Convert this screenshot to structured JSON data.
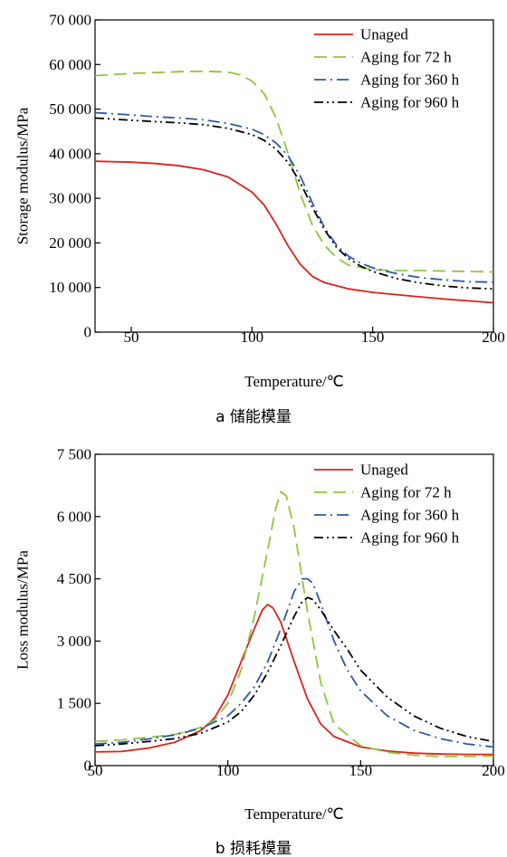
{
  "chart_data": [
    {
      "type": "line",
      "title": "",
      "caption": "a 储能模量",
      "xlabel": "Temperature/℃",
      "ylabel": "Storage modulus/MPa",
      "xlim": [
        35,
        200
      ],
      "ylim": [
        0,
        70000
      ],
      "xticks": [
        50,
        100,
        150,
        200
      ],
      "xtick_labels": [
        "50",
        "100",
        "150",
        "200"
      ],
      "yticks": [
        0,
        10000,
        20000,
        30000,
        40000,
        50000,
        60000,
        70000
      ],
      "ytick_labels": [
        "0",
        "10 000",
        "20 000",
        "30 000",
        "40 000",
        "50 000",
        "60 000",
        "70 000"
      ],
      "grid": false,
      "legend_position": "top-right",
      "series": [
        {
          "name": "Unaged",
          "color": "#e0201b",
          "dash": "solid",
          "x": [
            35,
            50,
            60,
            70,
            80,
            90,
            100,
            105,
            110,
            115,
            120,
            125,
            130,
            140,
            150,
            160,
            170,
            180,
            190,
            200
          ],
          "y": [
            38300,
            38100,
            37800,
            37300,
            36400,
            34800,
            31400,
            28500,
            24200,
            19300,
            15200,
            12500,
            11100,
            9700,
            8900,
            8400,
            7900,
            7400,
            7000,
            6600
          ]
        },
        {
          "name": "Aging for 72 h",
          "color": "#8dc63f",
          "dash": "dash",
          "x": [
            35,
            50,
            60,
            70,
            80,
            90,
            95,
            100,
            105,
            110,
            115,
            120,
            125,
            130,
            135,
            140,
            150,
            160,
            170,
            180,
            190,
            200
          ],
          "y": [
            57500,
            58000,
            58200,
            58400,
            58500,
            58300,
            57700,
            56300,
            53500,
            48000,
            40000,
            31000,
            24000,
            19500,
            16700,
            15000,
            14000,
            13800,
            13800,
            13700,
            13600,
            13500
          ]
        },
        {
          "name": "Aging for 360 h",
          "color": "#2b5aa8",
          "dash": "dashdot",
          "x": [
            35,
            50,
            60,
            70,
            80,
            90,
            100,
            105,
            110,
            115,
            120,
            125,
            130,
            135,
            140,
            145,
            150,
            160,
            170,
            180,
            190,
            200
          ],
          "y": [
            49200,
            48700,
            48300,
            48000,
            47600,
            46800,
            45500,
            44300,
            42400,
            39500,
            35000,
            29000,
            23500,
            19500,
            17000,
            15500,
            14400,
            13100,
            12200,
            11700,
            11300,
            11200
          ]
        },
        {
          "name": "Aging for 960 h",
          "color": "#000000",
          "dash": "dashdotdot",
          "x": [
            35,
            50,
            60,
            70,
            80,
            90,
            100,
            105,
            110,
            115,
            120,
            125,
            130,
            135,
            140,
            145,
            150,
            160,
            170,
            180,
            190,
            200
          ],
          "y": [
            48000,
            47500,
            47200,
            46900,
            46500,
            45700,
            44300,
            43000,
            41000,
            38000,
            33500,
            28000,
            23000,
            19000,
            16500,
            14800,
            13600,
            12000,
            11000,
            10300,
            9900,
            9700
          ]
        }
      ]
    },
    {
      "type": "line",
      "title": "",
      "caption": "b 损耗模量",
      "xlabel": "Temperature/℃",
      "ylabel": "Loss modulus/MPa",
      "xlim": [
        50,
        200
      ],
      "ylim": [
        0,
        7500
      ],
      "xticks": [
        50,
        100,
        150,
        200
      ],
      "xtick_labels": [
        "50",
        "100",
        "150",
        "200"
      ],
      "yticks": [
        0,
        1500,
        3000,
        4500,
        6000,
        7500
      ],
      "ytick_labels": [
        "0",
        "1 500",
        "3 000",
        "4 500",
        "6 000",
        "7 500"
      ],
      "grid": false,
      "legend_position": "top-right",
      "series": [
        {
          "name": "Unaged",
          "color": "#e0201b",
          "dash": "solid",
          "x": [
            50,
            60,
            70,
            80,
            90,
            95,
            100,
            105,
            110,
            113,
            115,
            117,
            120,
            125,
            130,
            135,
            140,
            150,
            160,
            170,
            180,
            190,
            200
          ],
          "y": [
            330,
            340,
            420,
            560,
            850,
            1150,
            1700,
            2500,
            3300,
            3750,
            3880,
            3800,
            3450,
            2500,
            1600,
            1000,
            700,
            450,
            350,
            300,
            280,
            270,
            270
          ]
        },
        {
          "name": "Aging for 72 h",
          "color": "#8dc63f",
          "dash": "dash",
          "x": [
            50,
            60,
            70,
            80,
            90,
            95,
            100,
            105,
            110,
            115,
            118,
            120,
            122,
            125,
            130,
            135,
            140,
            150,
            160,
            170,
            180,
            190,
            200
          ],
          "y": [
            580,
            620,
            680,
            750,
            920,
            1100,
            1500,
            2300,
            3600,
            5200,
            6200,
            6600,
            6500,
            5700,
            3700,
            2000,
            1000,
            480,
            320,
            250,
            220,
            220,
            230
          ]
        },
        {
          "name": "Aging for 360 h",
          "color": "#2b5aa8",
          "dash": "dashdot",
          "x": [
            50,
            60,
            70,
            80,
            90,
            100,
            105,
            110,
            115,
            120,
            125,
            128,
            130,
            132,
            135,
            140,
            145,
            150,
            160,
            170,
            180,
            190,
            200
          ],
          "y": [
            520,
            560,
            640,
            740,
            900,
            1200,
            1500,
            1900,
            2500,
            3300,
            4200,
            4500,
            4500,
            4400,
            3900,
            3000,
            2300,
            1800,
            1200,
            850,
            650,
            520,
            450
          ]
        },
        {
          "name": "Aging for 960 h",
          "color": "#000000",
          "dash": "dashdotdot",
          "x": [
            50,
            60,
            70,
            80,
            90,
            100,
            105,
            110,
            115,
            120,
            125,
            128,
            130,
            132,
            135,
            140,
            145,
            150,
            160,
            170,
            180,
            190,
            200
          ],
          "y": [
            480,
            520,
            580,
            650,
            780,
            1050,
            1300,
            1700,
            2250,
            2900,
            3600,
            3950,
            4050,
            4000,
            3750,
            3250,
            2800,
            2300,
            1650,
            1200,
            900,
            700,
            580
          ]
        }
      ]
    }
  ]
}
